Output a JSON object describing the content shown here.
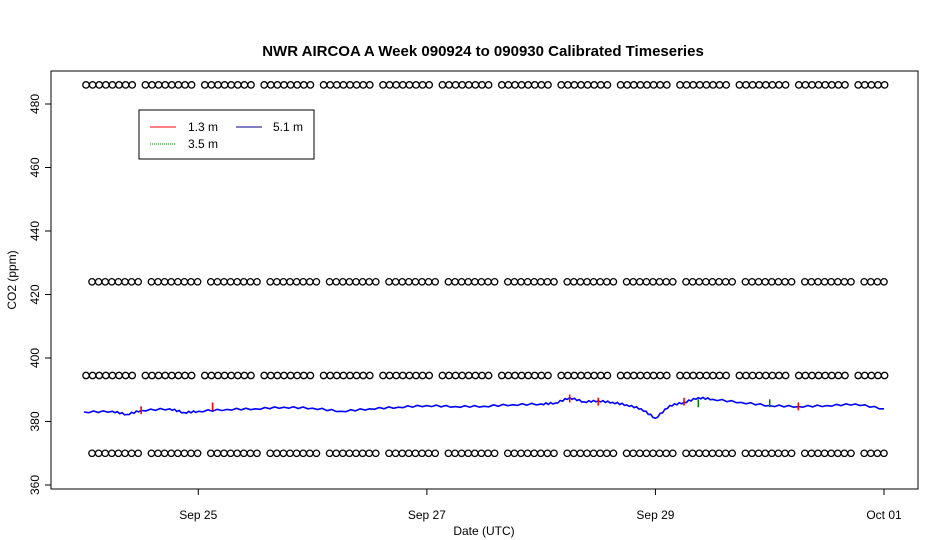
{
  "chart_data": {
    "type": "line",
    "title": "NWR AIRCOA A  Week 090924 to 090930  Calibrated Timeseries",
    "xlabel": "Date (UTC)",
    "ylabel": "CO2 (ppm)",
    "x_domain": [
      "2009-09-24",
      "2009-10-01"
    ],
    "xticks": [
      {
        "date": "2009-09-25",
        "label": "Sep 25"
      },
      {
        "date": "2009-09-27",
        "label": "Sep 27"
      },
      {
        "date": "2009-09-29",
        "label": "Sep 29"
      },
      {
        "date": "2009-10-01",
        "label": "Oct 01"
      }
    ],
    "ylim": [
      358,
      472
    ],
    "yticks": [
      360,
      380,
      400,
      420,
      440,
      460,
      480
    ],
    "legend": {
      "position": "top-left",
      "entries": [
        {
          "name": "1.3 m",
          "color": "#ff0000"
        },
        {
          "name": "3.5 m",
          "color": "#008000"
        },
        {
          "name": "5.1 m",
          "color": "#000080"
        }
      ]
    },
    "series": [
      {
        "name": "5.1 m",
        "color": "#0000ff",
        "points": [
          [
            "2009-09-24T00:00",
            383.0
          ],
          [
            "2009-09-24T06:00",
            383.2
          ],
          [
            "2009-09-24T09:00",
            382.2
          ],
          [
            "2009-09-24T12:00",
            383.5
          ],
          [
            "2009-09-24T18:00",
            384.0
          ],
          [
            "2009-09-24T21:00",
            382.8
          ],
          [
            "2009-09-25T00:00",
            383.2
          ],
          [
            "2009-09-25T06:00",
            383.8
          ],
          [
            "2009-09-25T12:00",
            384.0
          ],
          [
            "2009-09-25T18:00",
            384.5
          ],
          [
            "2009-09-26T00:00",
            384.2
          ],
          [
            "2009-09-26T06:00",
            383.2
          ],
          [
            "2009-09-26T12:00",
            384.0
          ],
          [
            "2009-09-26T18:00",
            384.5
          ],
          [
            "2009-09-27T00:00",
            385.0
          ],
          [
            "2009-09-27T06:00",
            384.7
          ],
          [
            "2009-09-27T12:00",
            384.8
          ],
          [
            "2009-09-27T18:00",
            385.3
          ],
          [
            "2009-09-28T00:00",
            385.5
          ],
          [
            "2009-09-28T03:00",
            385.8
          ],
          [
            "2009-09-28T06:00",
            387.5
          ],
          [
            "2009-09-28T09:00",
            386.2
          ],
          [
            "2009-09-28T12:00",
            386.5
          ],
          [
            "2009-09-28T15:00",
            386.0
          ],
          [
            "2009-09-28T18:00",
            385.2
          ],
          [
            "2009-09-28T21:00",
            384.0
          ],
          [
            "2009-09-29T00:00",
            381.0
          ],
          [
            "2009-09-29T03:00",
            385.0
          ],
          [
            "2009-09-29T06:00",
            386.0
          ],
          [
            "2009-09-29T09:00",
            387.5
          ],
          [
            "2009-09-29T12:00",
            387.0
          ],
          [
            "2009-09-29T18:00",
            386.0
          ],
          [
            "2009-09-30T00:00",
            385.0
          ],
          [
            "2009-09-30T06:00",
            384.7
          ],
          [
            "2009-09-30T12:00",
            385.0
          ],
          [
            "2009-09-30T18:00",
            385.5
          ],
          [
            "2009-10-01T00:00",
            384.0
          ]
        ]
      },
      {
        "name": "1.3 m",
        "color": "#ff0000",
        "points": [
          [
            "2009-09-24T12:00",
            384.8
          ],
          [
            "2009-09-25T03:00",
            386.0
          ],
          [
            "2009-09-28T06:00",
            388.5
          ],
          [
            "2009-09-28T12:00",
            387.5
          ],
          [
            "2009-09-29T06:00",
            387.5
          ],
          [
            "2009-09-30T06:00",
            386.0
          ]
        ]
      },
      {
        "name": "3.5 m",
        "color": "#008000",
        "points": [
          [
            "2009-09-29T09:00",
            387.0
          ],
          [
            "2009-09-30T00:00",
            387.0
          ]
        ]
      }
    ],
    "marker_rows": [
      {
        "y": 486,
        "marker": "o",
        "color": "#000000"
      },
      {
        "y": 424,
        "marker": "o",
        "color": "#000000"
      },
      {
        "y": 394.5,
        "marker": "o",
        "color": "#000000"
      },
      {
        "y": 370,
        "marker": "o",
        "color": "#000000"
      }
    ]
  }
}
